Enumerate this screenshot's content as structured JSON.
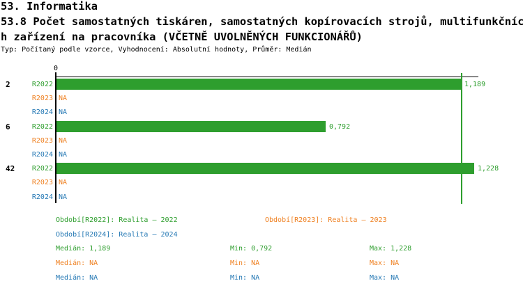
{
  "header": {
    "line1": "53. Informatika",
    "line2": "53.8 Počet samostatných tiskáren, samostatných kopírovacích strojů, multifunkčníc",
    "line3": "h zařízení na pracovníka (VČETNĚ UVOLNĚNÝCH FUNKCIONÁŘŮ)",
    "meta": "Typ: Počítaný podle vzorce, Vyhodnocení: Absolutní hodnoty, Průměr: Medián"
  },
  "colors": {
    "green": "#2e9e2e",
    "orange": "#ef8122",
    "blue": "#2478b4",
    "axis": "#000000"
  },
  "chart_data": {
    "type": "bar",
    "orientation": "horizontal",
    "value_axis": {
      "zero_label": "0"
    },
    "series": [
      {
        "name": "R2022",
        "legend": "Období[R2022]: Realita – 2022",
        "color": "#2e9e2e"
      },
      {
        "name": "R2023",
        "legend": "Období[R2023]: Realita – 2023",
        "color": "#ef8122"
      },
      {
        "name": "R2024",
        "legend": "Období[R2024]: Realita – 2024",
        "color": "#2478b4"
      }
    ],
    "groups": [
      {
        "label": "2",
        "bars": [
          {
            "series": "R2022",
            "value": 1.189,
            "display": "1,189"
          },
          {
            "series": "R2023",
            "value": null,
            "display": "NA"
          },
          {
            "series": "R2024",
            "value": null,
            "display": "NA"
          }
        ]
      },
      {
        "label": "6",
        "bars": [
          {
            "series": "R2022",
            "value": 0.792,
            "display": "0,792"
          },
          {
            "series": "R2023",
            "value": null,
            "display": "NA"
          },
          {
            "series": "R2024",
            "value": null,
            "display": "NA"
          }
        ]
      },
      {
        "label": "42",
        "bars": [
          {
            "series": "R2022",
            "value": 1.228,
            "display": "1,228"
          },
          {
            "series": "R2023",
            "value": null,
            "display": "NA"
          },
          {
            "series": "R2024",
            "value": null,
            "display": "NA"
          }
        ]
      }
    ],
    "median_line_value": 1.189,
    "stats_rows": [
      {
        "series": "R2022",
        "color": "#2e9e2e",
        "cells": [
          "Medián: 1,189",
          "Min: 0,792",
          "Max: 1,228"
        ]
      },
      {
        "series": "R2023",
        "color": "#ef8122",
        "cells": [
          "Medián: NA",
          "Min: NA",
          "Max: NA"
        ]
      },
      {
        "series": "R2024",
        "color": "#2478b4",
        "cells": [
          "Medián: NA",
          "Min: NA",
          "Max: NA"
        ]
      }
    ]
  }
}
